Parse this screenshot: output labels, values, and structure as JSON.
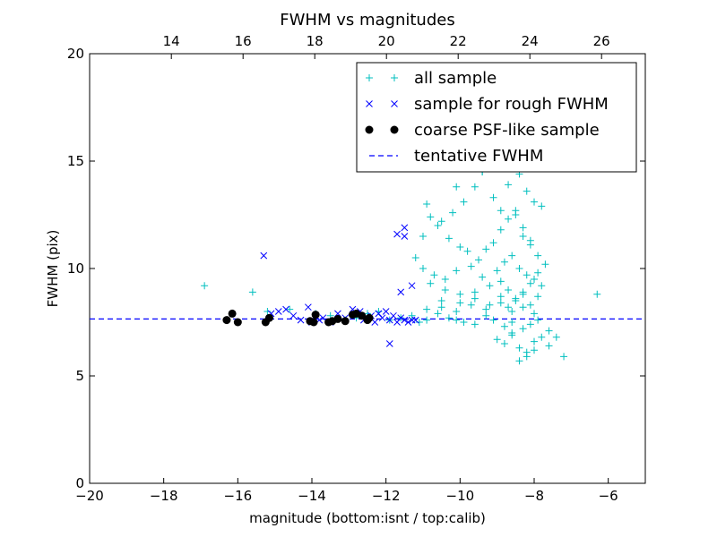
{
  "chart_data": {
    "type": "scatter",
    "title": "FWHM vs magnitudes",
    "xlabel": "magnitude (bottom:isnt / top:calib)",
    "ylabel": "FWHM (pix)",
    "xlim": [
      -20,
      -5
    ],
    "ylim": [
      0,
      20
    ],
    "top_xlim": [
      11.72,
      27.22
    ],
    "x_ticks": [
      -20,
      -18,
      -16,
      -14,
      -12,
      -10,
      -8,
      -6
    ],
    "x_tick_labels": [
      "−20",
      "−18",
      "−16",
      "−14",
      "−12",
      "−10",
      "−8",
      "−6"
    ],
    "top_ticks": [
      14,
      16,
      18,
      20,
      22,
      24,
      26
    ],
    "top_tick_labels": [
      "14",
      "16",
      "18",
      "20",
      "22",
      "24",
      "26"
    ],
    "y_ticks": [
      0,
      5,
      10,
      15,
      20
    ],
    "y_tick_labels": [
      "0",
      "5",
      "10",
      "15",
      "20"
    ],
    "grid": false,
    "legend_position": "top-right",
    "legend": [
      {
        "label": "all sample",
        "marker": "plus",
        "color": "#00bfbf"
      },
      {
        "label": "sample for rough FWHM",
        "marker": "x",
        "color": "#0000ff"
      },
      {
        "label": "coarse PSF-like sample",
        "marker": "dot",
        "color": "#000000"
      },
      {
        "label": "tentative FWHM",
        "marker": "dashed-line",
        "color": "#0000ff"
      }
    ],
    "series": [
      {
        "name": "all sample",
        "marker": "plus",
        "color": "#00bfbf",
        "x": [
          -16.9,
          -15.6,
          -15.2,
          -14.6,
          -13.9,
          -13.5,
          -13.1,
          -12.8,
          -12.5,
          -12.2,
          -11.9,
          -11.6,
          -11.3,
          -11.1,
          -10.9,
          -10.6,
          -10.3,
          -10.1,
          -9.9,
          -9.6,
          -9.3,
          -9.1,
          -8.8,
          -8.6,
          -8.3,
          -8.1,
          -7.9,
          -7.6,
          -7.4,
          -6.3,
          -7.2,
          -11.2,
          -11.0,
          -10.8,
          -10.5,
          -10.2,
          -9.9,
          -9.6,
          -9.4,
          -9.2,
          -9.0,
          -8.8,
          -8.6,
          -8.4,
          -8.2,
          -8.0,
          -7.8,
          -10.9,
          -10.6,
          -10.3,
          -10.0,
          -9.8,
          -9.5,
          -9.3,
          -9.1,
          -8.9,
          -8.7,
          -8.5,
          -8.3,
          -8.1,
          -7.9,
          -7.7,
          -11.0,
          -10.7,
          -10.4,
          -10.1,
          -9.7,
          -9.4,
          -9.0,
          -8.8,
          -8.6,
          -8.4,
          -8.2,
          -8.0,
          -7.8,
          -10.8,
          -10.4,
          -10.0,
          -9.6,
          -9.2,
          -8.9,
          -8.7,
          -8.5,
          -8.3,
          -8.1,
          -7.9,
          -10.5,
          -10.0,
          -9.6,
          -9.2,
          -8.9,
          -8.7,
          -8.5,
          -8.3,
          -8.1,
          -10.9,
          -10.5,
          -10.1,
          -9.7,
          -9.3,
          -8.9,
          -8.6,
          -8.3,
          -8.0,
          -10.6,
          -10.1,
          -9.7,
          -9.4,
          -9.1,
          -8.9,
          -8.7,
          -8.5,
          -8.3,
          -8.1,
          -7.9,
          -9.0,
          -8.8,
          -8.6,
          -8.4,
          -8.2,
          -8.0,
          -7.8,
          -7.6,
          -8.9,
          -8.7,
          -8.5,
          -8.3,
          -8.1,
          -7.9,
          -8.4,
          -8.2,
          -8.0,
          -8.6
        ],
        "y": [
          9.2,
          8.9,
          8.0,
          8.1,
          7.9,
          7.8,
          7.6,
          7.7,
          7.9,
          8.0,
          7.6,
          7.7,
          7.8,
          7.5,
          7.6,
          7.9,
          7.7,
          7.6,
          7.5,
          7.4,
          7.8,
          7.6,
          7.3,
          7.5,
          7.2,
          7.4,
          7.6,
          7.1,
          6.8,
          8.8,
          5.9,
          10.5,
          11.5,
          12.4,
          12.2,
          12.6,
          13.1,
          13.8,
          14.5,
          15.3,
          16.2,
          15.9,
          15.1,
          14.4,
          13.6,
          13.1,
          12.9,
          13.0,
          12.0,
          11.4,
          11.0,
          10.8,
          10.4,
          10.9,
          11.2,
          11.8,
          12.3,
          12.7,
          11.5,
          11.1,
          10.6,
          10.2,
          10.0,
          9.7,
          9.5,
          9.9,
          10.1,
          9.6,
          9.9,
          10.3,
          10.6,
          10.0,
          9.7,
          9.5,
          9.2,
          9.3,
          9.0,
          8.8,
          8.9,
          9.2,
          9.4,
          9.0,
          8.6,
          8.9,
          9.3,
          8.7,
          8.5,
          8.4,
          8.6,
          8.3,
          8.7,
          8.2,
          8.5,
          8.8,
          8.3,
          8.1,
          8.2,
          8.0,
          8.3,
          8.1,
          8.4,
          8.0,
          8.2,
          7.9,
          14.8,
          13.8,
          15.1,
          14.5,
          13.3,
          12.7,
          13.9,
          12.5,
          11.9,
          11.3,
          9.8,
          6.7,
          6.5,
          6.9,
          6.3,
          6.1,
          6.6,
          6.8,
          6.4,
          18.7,
          17.9,
          17.2,
          16.6,
          16.3,
          15.7,
          5.7,
          5.9,
          6.2,
          7.0
        ]
      },
      {
        "name": "sample for rough FWHM",
        "marker": "x",
        "color": "#0000ff",
        "x": [
          -15.3,
          -15.1,
          -14.9,
          -14.7,
          -14.5,
          -14.3,
          -14.1,
          -14.0,
          -13.9,
          -13.8,
          -13.7,
          -13.5,
          -13.3,
          -13.1,
          -12.9,
          -12.7,
          -12.6,
          -12.4,
          -12.3,
          -12.2,
          -12.1,
          -12.0,
          -11.9,
          -11.8,
          -11.7,
          -11.6,
          -11.5,
          -11.4,
          -11.3,
          -11.2,
          -11.6,
          -11.5,
          -11.3,
          -11.5,
          -11.7,
          -11.9
        ],
        "y": [
          10.6,
          7.9,
          8.0,
          8.1,
          7.8,
          7.6,
          8.2,
          7.5,
          7.8,
          7.6,
          7.7,
          7.5,
          7.9,
          7.7,
          8.1,
          8.0,
          7.6,
          7.8,
          7.5,
          7.9,
          7.7,
          8.0,
          7.6,
          7.8,
          7.5,
          7.7,
          7.6,
          7.5,
          9.2,
          7.6,
          8.9,
          11.5,
          7.6,
          11.9,
          11.6,
          6.5
        ]
      },
      {
        "name": "coarse PSF-like sample",
        "marker": "dot",
        "color": "#000000",
        "x": [
          -16.3,
          -16.15,
          -16.0,
          -15.25,
          -15.15,
          -14.05,
          -13.95,
          -13.9,
          -13.55,
          -13.45,
          -13.3,
          -13.1,
          -12.9,
          -12.8,
          -12.65,
          -12.5,
          -12.45
        ],
        "y": [
          7.6,
          7.9,
          7.5,
          7.5,
          7.7,
          7.55,
          7.5,
          7.85,
          7.5,
          7.55,
          7.65,
          7.55,
          7.85,
          7.9,
          7.8,
          7.6,
          7.7
        ]
      }
    ],
    "tentative_fwhm": 7.65
  }
}
